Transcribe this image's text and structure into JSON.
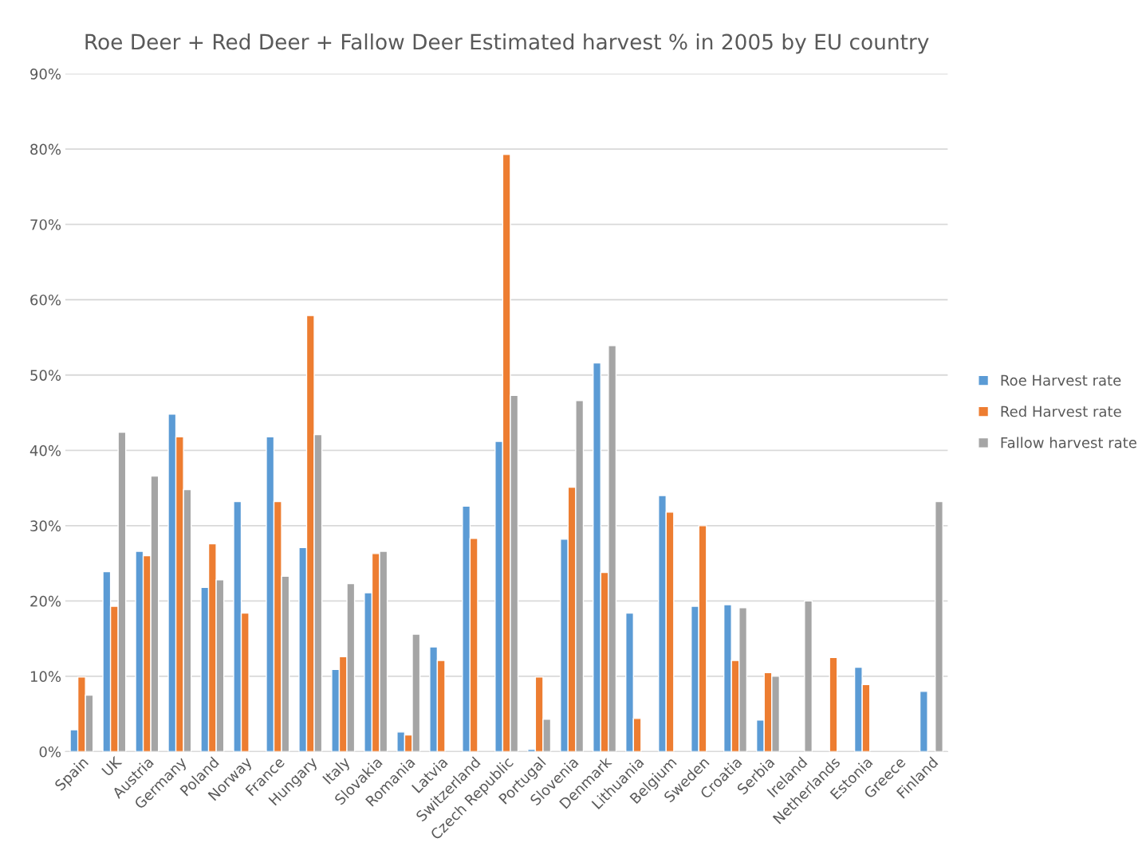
{
  "chart_data": {
    "type": "bar",
    "title": "Roe Deer + Red Deer + Fallow Deer Estimated harvest % in 2005 by EU country",
    "categories": [
      "Spain",
      "UK",
      "Austria",
      "Germany",
      "Poland",
      "Norway",
      "France",
      "Hungary",
      "Italy",
      "Slovakia",
      "Romania",
      "Latvia",
      "Switzerland",
      "Czech Republic",
      "Portugal",
      "Slovenia",
      "Denmark",
      "Lithuania",
      "Belgium",
      "Sweden",
      "Croatia",
      "Serbia",
      "Ireland",
      "Netherlands",
      "Estonia",
      "Greece",
      "Finland"
    ],
    "series": [
      {
        "name": "Roe Harvest rate",
        "color": "#5b9bd5",
        "values": [
          2.9,
          23.9,
          26.6,
          44.8,
          21.8,
          33.2,
          41.8,
          27.1,
          10.9,
          21.1,
          2.6,
          13.9,
          32.6,
          41.2,
          0.3,
          28.2,
          51.6,
          18.4,
          34.0,
          19.3,
          19.5,
          4.2,
          null,
          null,
          11.2,
          null,
          8.0
        ]
      },
      {
        "name": "Red Harvest rate",
        "color": "#ed7d31",
        "values": [
          9.9,
          19.3,
          26.0,
          41.8,
          27.6,
          18.4,
          33.2,
          57.9,
          12.6,
          26.3,
          2.2,
          12.1,
          28.3,
          79.3,
          9.9,
          35.1,
          23.8,
          4.4,
          31.8,
          30.0,
          12.1,
          10.5,
          null,
          12.5,
          8.9,
          null,
          null
        ]
      },
      {
        "name": "Fallow harvest rate",
        "color": "#a5a5a5",
        "values": [
          7.5,
          42.4,
          36.6,
          34.8,
          22.8,
          null,
          23.3,
          42.1,
          22.3,
          26.6,
          15.6,
          null,
          null,
          47.3,
          4.3,
          46.6,
          53.9,
          null,
          null,
          null,
          19.1,
          10.0,
          20.0,
          null,
          null,
          null,
          33.2
        ]
      }
    ],
    "ylim": [
      0,
      90
    ],
    "yticks": [
      {
        "value": 0,
        "label": "0%"
      },
      {
        "value": 10,
        "label": "10%"
      },
      {
        "value": 20,
        "label": "20%"
      },
      {
        "value": 30,
        "label": "30%"
      },
      {
        "value": 40,
        "label": "40%"
      },
      {
        "value": 50,
        "label": "50%"
      },
      {
        "value": 60,
        "label": "60%"
      },
      {
        "value": 70,
        "label": "70%"
      },
      {
        "value": 80,
        "label": "80%"
      },
      {
        "value": 90,
        "label": "90%"
      }
    ],
    "grid": "y",
    "legend": "right"
  }
}
